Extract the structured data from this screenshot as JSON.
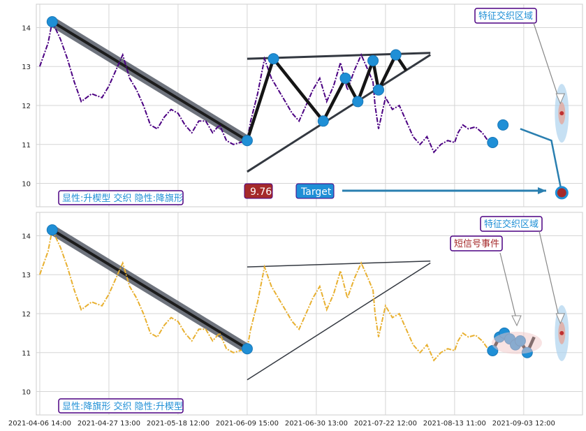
{
  "chart_data": {
    "type": "line",
    "x_ticks": [
      "2021-04-06 14:00",
      "2021-04-27 13:00",
      "2021-05-18 12:00",
      "2021-06-09 15:00",
      "2021-06-30 13:00",
      "2021-07-22 12:00",
      "2021-08-13 11:00",
      "2021-09-03 12:00"
    ],
    "y_ticks": [
      10,
      11,
      12,
      13,
      14
    ],
    "ylim": [
      9.4,
      14.6
    ],
    "xlim": [
      -0.05,
      7.85
    ],
    "grid": true,
    "panels": [
      {
        "series_color": "#4b0082",
        "series": [
          [
            0,
            13.0
          ],
          [
            0.12,
            13.6
          ],
          [
            0.18,
            14.15
          ],
          [
            0.3,
            13.7
          ],
          [
            0.4,
            13.2
          ],
          [
            0.5,
            12.6
          ],
          [
            0.6,
            12.1
          ],
          [
            0.75,
            12.3
          ],
          [
            0.9,
            12.2
          ],
          [
            1.0,
            12.5
          ],
          [
            1.1,
            12.9
          ],
          [
            1.2,
            13.3
          ],
          [
            1.3,
            12.7
          ],
          [
            1.4,
            12.4
          ],
          [
            1.5,
            12.0
          ],
          [
            1.6,
            11.5
          ],
          [
            1.7,
            11.4
          ],
          [
            1.8,
            11.7
          ],
          [
            1.9,
            11.9
          ],
          [
            2.0,
            11.8
          ],
          [
            2.1,
            11.5
          ],
          [
            2.2,
            11.3
          ],
          [
            2.3,
            11.6
          ],
          [
            2.4,
            11.6
          ],
          [
            2.5,
            11.3
          ],
          [
            2.6,
            11.5
          ],
          [
            2.7,
            11.1
          ],
          [
            2.8,
            11.0
          ],
          [
            2.9,
            11.05
          ],
          [
            3.0,
            11.1
          ],
          [
            3.05,
            11.6
          ],
          [
            3.15,
            12.3
          ],
          [
            3.25,
            13.2
          ],
          [
            3.35,
            12.7
          ],
          [
            3.45,
            12.4
          ],
          [
            3.55,
            12.1
          ],
          [
            3.65,
            11.8
          ],
          [
            3.75,
            11.6
          ],
          [
            3.85,
            12.0
          ],
          [
            3.95,
            12.4
          ],
          [
            4.05,
            12.7
          ],
          [
            4.15,
            12.1
          ],
          [
            4.25,
            12.5
          ],
          [
            4.35,
            13.1
          ],
          [
            4.45,
            12.4
          ],
          [
            4.55,
            12.9
          ],
          [
            4.65,
            13.3
          ],
          [
            4.75,
            12.9
          ],
          [
            4.82,
            12.6
          ],
          [
            4.85,
            12.0
          ],
          [
            4.9,
            11.4
          ],
          [
            5.0,
            12.2
          ],
          [
            5.1,
            11.9
          ],
          [
            5.2,
            12.0
          ],
          [
            5.3,
            11.6
          ],
          [
            5.4,
            11.2
          ],
          [
            5.5,
            11.0
          ],
          [
            5.6,
            11.2
          ],
          [
            5.7,
            10.8
          ],
          [
            5.8,
            11.0
          ],
          [
            5.9,
            11.1
          ],
          [
            6.0,
            11.05
          ],
          [
            6.05,
            11.3
          ],
          [
            6.12,
            11.5
          ],
          [
            6.2,
            11.4
          ],
          [
            6.3,
            11.45
          ],
          [
            6.4,
            11.3
          ],
          [
            6.48,
            11.1
          ]
        ],
        "markers": [
          [
            0.18,
            14.15
          ],
          [
            3.0,
            11.1
          ],
          [
            3.38,
            13.2
          ],
          [
            4.1,
            11.6
          ],
          [
            4.42,
            12.7
          ],
          [
            4.6,
            12.1
          ],
          [
            4.82,
            13.15
          ],
          [
            4.9,
            12.4
          ],
          [
            5.15,
            13.3
          ],
          [
            6.55,
            11.05
          ],
          [
            6.7,
            11.5
          ]
        ],
        "zigzag": [
          [
            3.0,
            11.1
          ],
          [
            3.38,
            13.2
          ],
          [
            4.1,
            11.6
          ],
          [
            4.42,
            12.7
          ],
          [
            4.6,
            12.1
          ],
          [
            4.82,
            13.15
          ],
          [
            4.9,
            12.4
          ],
          [
            5.15,
            13.3
          ],
          [
            5.3,
            12.9
          ]
        ],
        "trend": [
          [
            0.18,
            14.15
          ],
          [
            3.0,
            11.1
          ]
        ],
        "upper_line": [
          [
            3.0,
            13.2
          ],
          [
            5.65,
            13.35
          ]
        ],
        "lower_line": [
          [
            3.0,
            10.3
          ],
          [
            5.65,
            13.3
          ]
        ],
        "left_label": "显性:升楔型 交织 隐性:降旗形",
        "top_box": "特征交织区域",
        "target_box": "Target",
        "value_box": "9.76",
        "target_value": 9.76
      },
      {
        "series_color": "#e8b030",
        "series": [
          [
            0,
            13.0
          ],
          [
            0.12,
            13.6
          ],
          [
            0.18,
            14.15
          ],
          [
            0.3,
            13.7
          ],
          [
            0.4,
            13.2
          ],
          [
            0.5,
            12.6
          ],
          [
            0.6,
            12.1
          ],
          [
            0.75,
            12.3
          ],
          [
            0.9,
            12.2
          ],
          [
            1.0,
            12.5
          ],
          [
            1.1,
            12.9
          ],
          [
            1.2,
            13.3
          ],
          [
            1.3,
            12.7
          ],
          [
            1.4,
            12.4
          ],
          [
            1.5,
            12.0
          ],
          [
            1.6,
            11.5
          ],
          [
            1.7,
            11.4
          ],
          [
            1.8,
            11.7
          ],
          [
            1.9,
            11.9
          ],
          [
            2.0,
            11.8
          ],
          [
            2.1,
            11.5
          ],
          [
            2.2,
            11.3
          ],
          [
            2.3,
            11.6
          ],
          [
            2.4,
            11.6
          ],
          [
            2.5,
            11.3
          ],
          [
            2.6,
            11.5
          ],
          [
            2.7,
            11.1
          ],
          [
            2.8,
            11.0
          ],
          [
            2.9,
            11.05
          ],
          [
            3.0,
            11.1
          ],
          [
            3.05,
            11.6
          ],
          [
            3.15,
            12.3
          ],
          [
            3.25,
            13.2
          ],
          [
            3.35,
            12.7
          ],
          [
            3.45,
            12.4
          ],
          [
            3.55,
            12.1
          ],
          [
            3.65,
            11.8
          ],
          [
            3.75,
            11.6
          ],
          [
            3.85,
            12.0
          ],
          [
            3.95,
            12.4
          ],
          [
            4.05,
            12.7
          ],
          [
            4.15,
            12.1
          ],
          [
            4.25,
            12.5
          ],
          [
            4.35,
            13.1
          ],
          [
            4.45,
            12.4
          ],
          [
            4.55,
            12.9
          ],
          [
            4.65,
            13.3
          ],
          [
            4.75,
            12.9
          ],
          [
            4.82,
            12.6
          ],
          [
            4.85,
            12.0
          ],
          [
            4.9,
            11.4
          ],
          [
            5.0,
            12.2
          ],
          [
            5.1,
            11.9
          ],
          [
            5.2,
            12.0
          ],
          [
            5.3,
            11.6
          ],
          [
            5.4,
            11.2
          ],
          [
            5.5,
            11.0
          ],
          [
            5.6,
            11.2
          ],
          [
            5.7,
            10.8
          ],
          [
            5.8,
            11.0
          ],
          [
            5.9,
            11.1
          ],
          [
            6.0,
            11.05
          ],
          [
            6.05,
            11.3
          ],
          [
            6.12,
            11.5
          ],
          [
            6.2,
            11.4
          ],
          [
            6.3,
            11.45
          ],
          [
            6.4,
            11.3
          ],
          [
            6.48,
            11.1
          ]
        ],
        "markers": [
          [
            0.18,
            14.15
          ],
          [
            3.0,
            11.1
          ],
          [
            6.55,
            11.05
          ],
          [
            6.65,
            11.4
          ],
          [
            6.72,
            11.5
          ],
          [
            6.8,
            11.35
          ],
          [
            6.88,
            11.2
          ],
          [
            6.95,
            11.3
          ],
          [
            7.05,
            11.0
          ]
        ],
        "zigzag": [
          [
            6.55,
            11.05
          ],
          [
            6.65,
            11.4
          ],
          [
            6.72,
            11.5
          ],
          [
            6.8,
            11.35
          ],
          [
            6.88,
            11.2
          ],
          [
            6.95,
            11.3
          ],
          [
            7.05,
            11.0
          ],
          [
            7.15,
            11.4
          ]
        ],
        "trend": [
          [
            0.18,
            14.15
          ],
          [
            3.0,
            11.1
          ]
        ],
        "upper_line": [
          [
            3.0,
            13.2
          ],
          [
            5.65,
            13.35
          ]
        ],
        "lower_line": [
          [
            3.0,
            10.3
          ],
          [
            5.65,
            13.3
          ]
        ],
        "left_label": "显性:降旗形 交织 隐性:升楔型",
        "top_box": "特征交织区域",
        "signal_box": "短信号事件"
      }
    ]
  }
}
